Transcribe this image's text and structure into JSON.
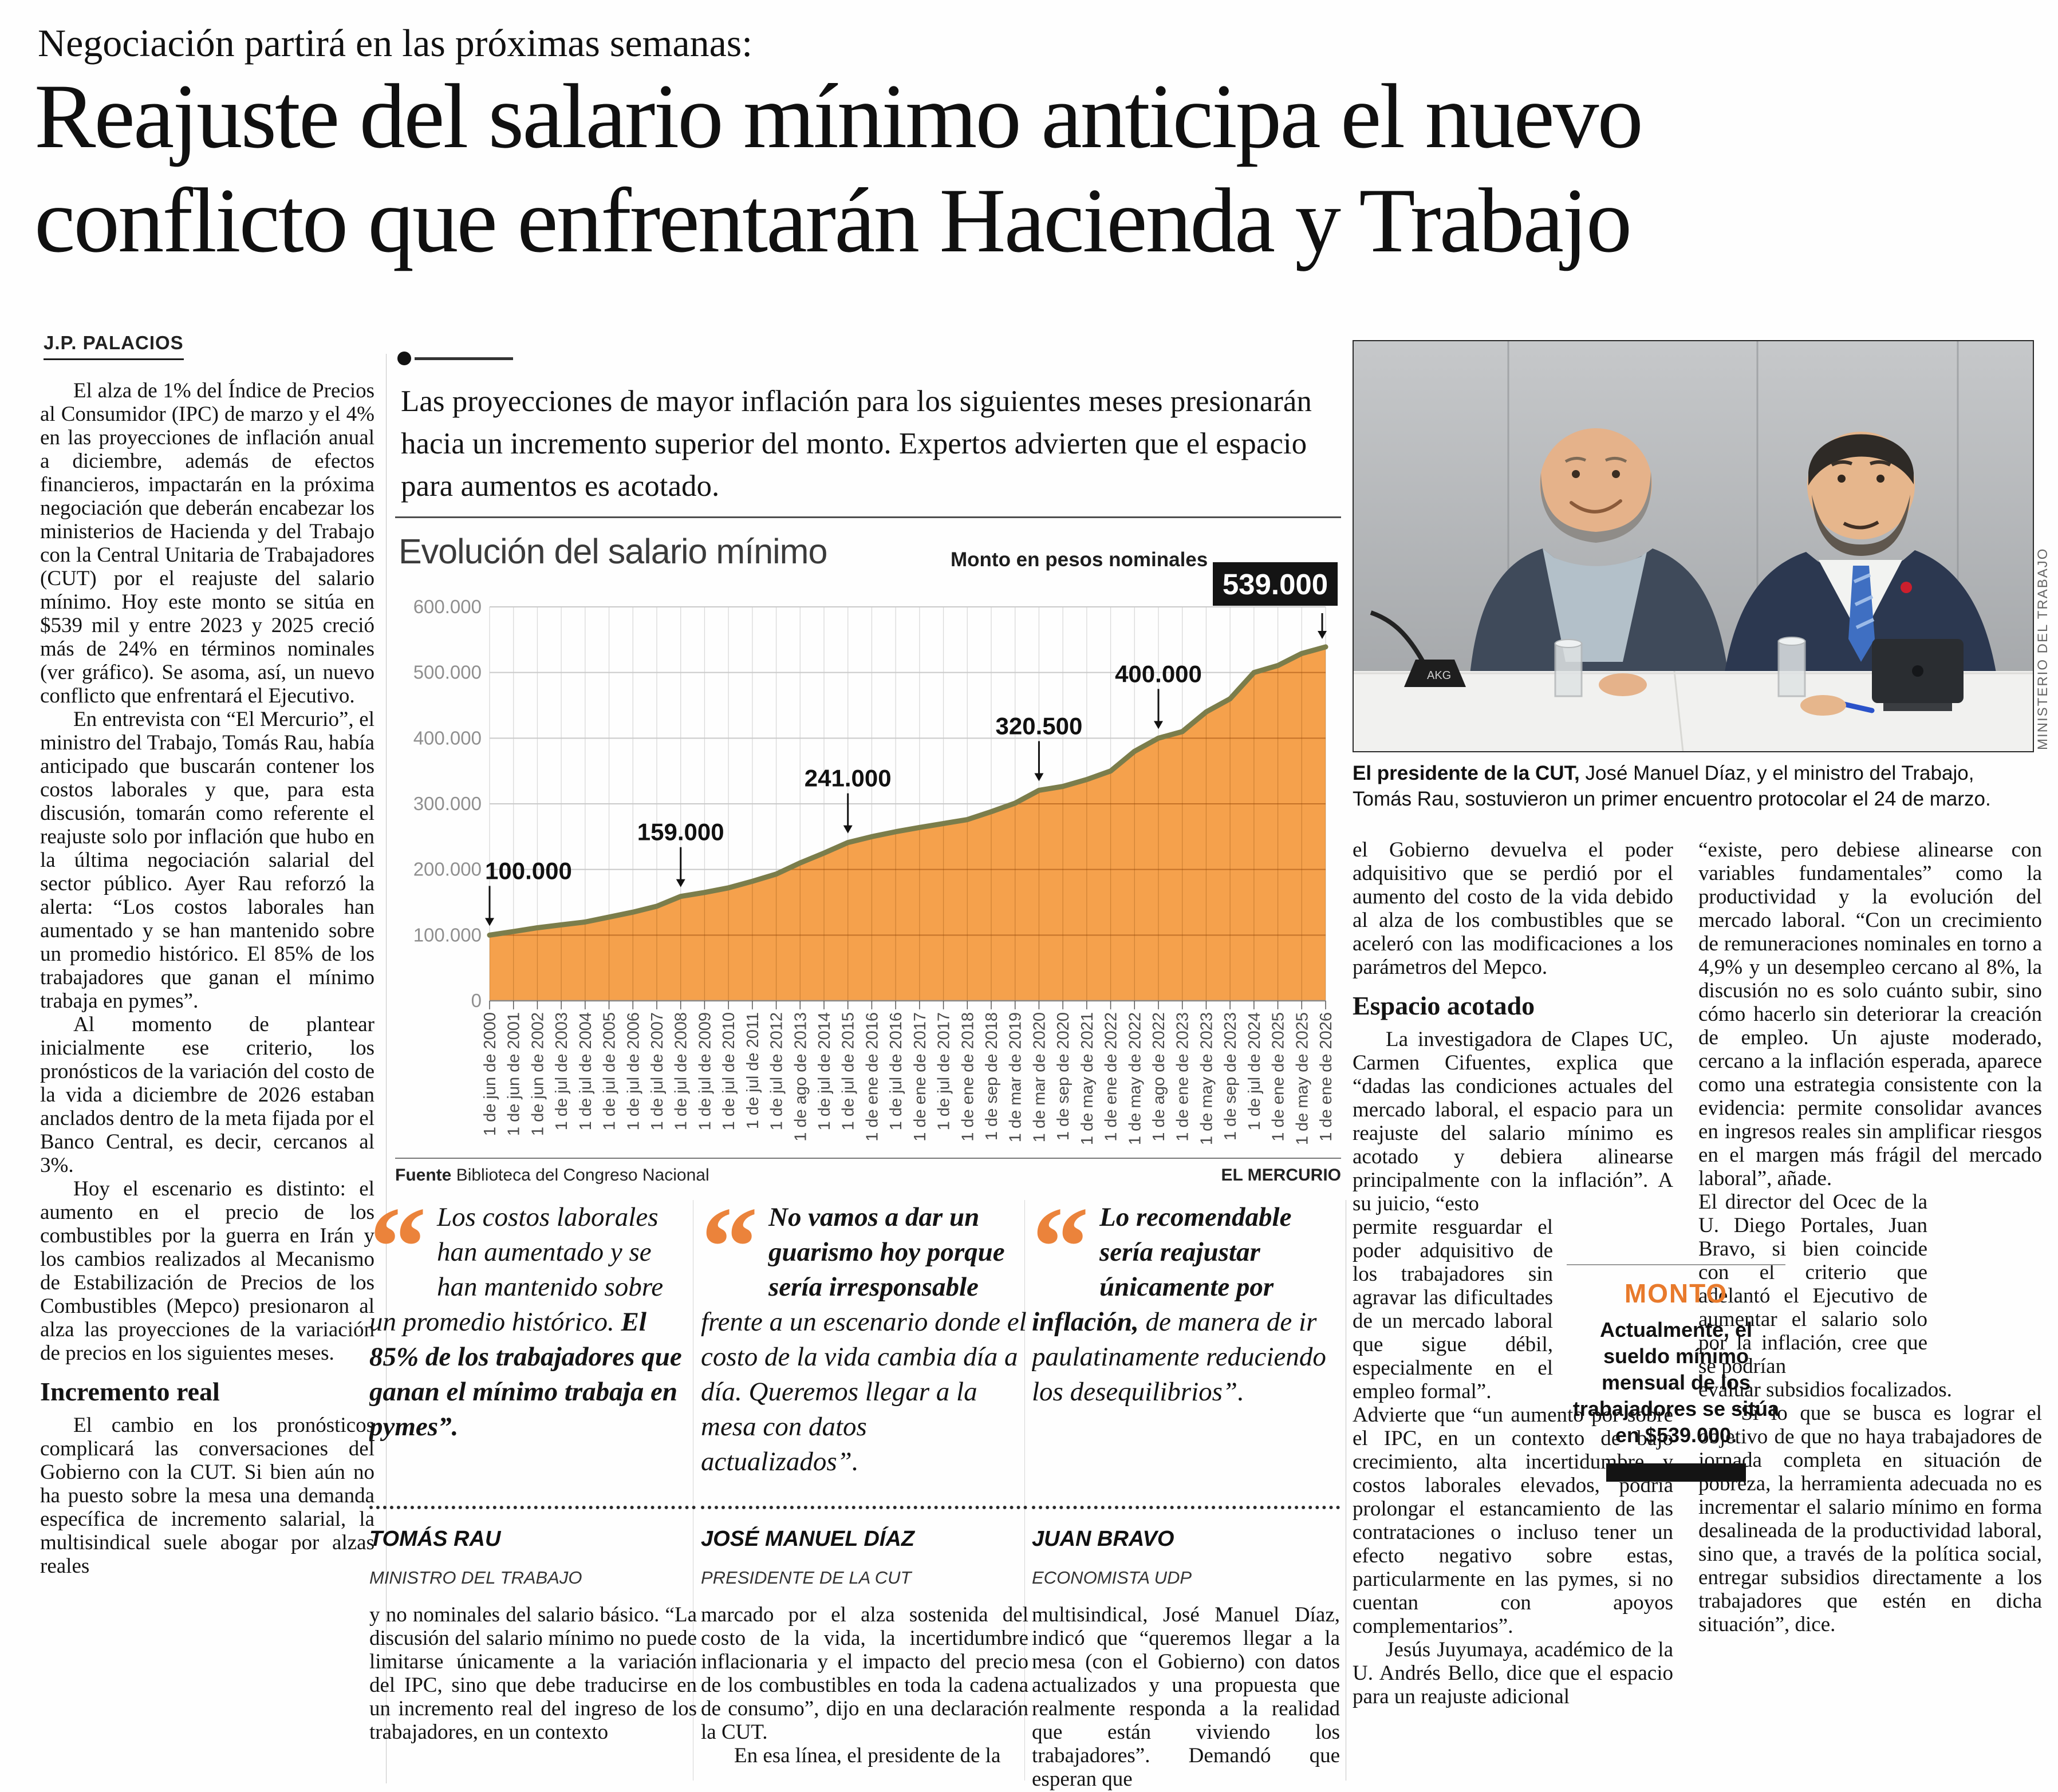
{
  "masthead": {
    "kicker": "Negociación partirá en las próximas semanas:",
    "headline_line1": "Reajuste del salario mínimo anticipa el nuevo",
    "headline_line2": "conflicto que enfrentarán Hacienda y Trabajo",
    "byline": "J.P. PALACIOS"
  },
  "standfirst": "Las proyecciones de mayor inflación para los siguientes meses presionarán hacia un incremento superior del monto. Expertos advierten que el espacio para aumentos es acotado.",
  "left_column": {
    "p1": "El alza de 1% del Índice de Precios al Consumidor (IPC) de marzo y el 4% en las proyecciones de inflación anual a diciembre, además de efectos financieros, impactarán en la próxima negociación que deberán encabezar los ministerios de Hacienda y del Trabajo con la Central Unitaria de Trabajadores (CUT) por el reajuste del salario mínimo. Hoy este monto se sitúa en $539 mil y entre 2023 y 2025 creció más de 24% en términos nominales (ver gráfico). Se asoma, así, un nuevo conflicto que enfrentará el Ejecutivo.",
    "p2": "En entrevista con “El Mercurio”, el ministro del Trabajo, Tomás Rau, había anticipado que buscarán contener los costos laborales y que, para esta discusión, tomarán como referente el reajuste solo por inflación que hubo en la última negociación salarial del sector público. Ayer Rau reforzó la alerta: “Los costos laborales han aumentado y se han mantenido sobre un promedio histórico. El 85% de los trabajadores que ganan el mínimo trabaja en pymes”.",
    "p3": "Al momento de plantear inicialmente ese criterio, los pronósticos de la variación del costo de la vida a diciembre de 2026 estaban anclados dentro de la meta fijada por el Banco Central, es decir, cercanos al 3%.",
    "p4": "Hoy el escenario es distinto: el aumento en el precio de los combustibles por la guerra en Irán y los cambios realizados al Mecanismo de Estabilización de Precios de los Combustibles (Mepco) presionaron al alza las proyecciones de la variación de precios en los siguientes meses.",
    "subhead": "Incremento real",
    "p5": "El cambio en los pronósticos complicará las conversaciones del Gobierno con la CUT. Si bien aún no ha puesto sobre la mesa una demanda específica de incremento salarial, la multisindical suele abogar por alzas reales"
  },
  "chart": {
    "title": "Evolución del salario mínimo",
    "subtitle": "Monto en pesos nominales",
    "final_label": "539.000",
    "source_label": "Fuente",
    "source": "Biblioteca del Congreso Nacional",
    "credit": "EL MERCURIO"
  },
  "chart_data": {
    "type": "area",
    "title": "Evolución del salario mínimo",
    "subtitle": "Monto en pesos nominales",
    "ylabel": "Monto en pesos nominales",
    "ylim": [
      0,
      600000
    ],
    "grid": true,
    "x": [
      "1 de jun de 2000",
      "1 de jun de 2001",
      "1 de jun de 2002",
      "1 de jul de 2003",
      "1 de jul de 2004",
      "1 de jul de 2005",
      "1 de jul de 2006",
      "1 de jul de 2007",
      "1 de jul de 2008",
      "1 de jul de 2009",
      "1 de jul de 2010",
      "1 de jul de 2011",
      "1 de jul de 2012",
      "1 de ago de 2013",
      "1 de jul de 2014",
      "1 de jul de 2015",
      "1 de ene de 2016",
      "1 de jul de 2016",
      "1 de ene de 2017",
      "1 de jul de 2017",
      "1 de ene de 2018",
      "1 de sep de 2018",
      "1 de mar de 2019",
      "1 de mar de 2020",
      "1 de sep de 2020",
      "1 de may de 2021",
      "1 de ene de 2022",
      "1 de may de 2022",
      "1 de ago de 2022",
      "1 de ene de 2023",
      "1 de may de 2023",
      "1 de sep de 2023",
      "1 de jul de 2024",
      "1 de ene de 2025",
      "1 de may de 2025",
      "1 de ene de 2026"
    ],
    "values": [
      100000,
      105500,
      111200,
      115648,
      120000,
      127500,
      135000,
      144000,
      159000,
      165000,
      172000,
      182000,
      193000,
      210000,
      225000,
      241000,
      250000,
      257500,
      264000,
      270000,
      276000,
      288000,
      301000,
      320500,
      326500,
      337000,
      350000,
      380000,
      400000,
      410000,
      440000,
      460000,
      500000,
      510636,
      529000,
      539000
    ],
    "y_ticks": [
      {
        "v": 0,
        "label": "0"
      },
      {
        "v": 100000,
        "label": "100.000"
      },
      {
        "v": 200000,
        "label": "200.000"
      },
      {
        "v": 300000,
        "label": "300.000"
      },
      {
        "v": 400000,
        "label": "400.000"
      },
      {
        "v": 500000,
        "label": "500.000"
      },
      {
        "v": 600000,
        "label": "600.000"
      }
    ],
    "annotations": [
      {
        "index": 0,
        "label": "100.000"
      },
      {
        "index": 8,
        "label": "159.000"
      },
      {
        "index": 15,
        "label": "241.000"
      },
      {
        "index": 23,
        "label": "320.500"
      },
      {
        "index": 28,
        "label": "400.000"
      }
    ],
    "final_annotation": {
      "index": 35,
      "label": "539.000"
    },
    "colors": {
      "area": "#F49C42",
      "line": "#7B7D4B",
      "grid": "#c9c9c9"
    }
  },
  "photo": {
    "caption_lead": "El presidente de la CUT,",
    "caption_rest": " José Manuel Díaz, y el ministro del Trabajo, Tomás Rau, sostuvieron un primer encuentro protocolar el 24 de marzo.",
    "credit": "MINISTERIO DEL TRABAJO",
    "mic_label": "AKG"
  },
  "quotes": [
    {
      "pre": "Los costos laborales han aumentado y se han mantenido sobre un promedio histórico. ",
      "bold": "El 85% de los trabajadores que ganan el mínimo trabaja en pymes”.",
      "post": "",
      "name": "TOMÁS RAU",
      "role": "MINISTRO DEL TRABAJO"
    },
    {
      "pre": "",
      "bold": "No vamos a dar un guarismo hoy porque sería irresponsable ",
      "post": "frente a un escenario donde el costo de la vida cambia día a día. Queremos llegar a la mesa con datos actualizados”.",
      "name": "JOSÉ MANUEL DÍAZ",
      "role": "PRESIDENTE DE LA CUT"
    },
    {
      "pre": "",
      "bold": "Lo recomendable sería reajustar únicamente por inflación, ",
      "post": "de manera de ir paulatinamente reduciendo los desequilibrios”.",
      "name": "JUAN BRAVO",
      "role": "ECONOMISTA UDP"
    }
  ],
  "bottom_columns": {
    "a": "y no nominales del salario básico. “La discusión del salario mínimo no puede limitarse únicamente a la variación del IPC, sino que debe traducirse en un incremento real del ingreso de los trabajadores, en un contexto",
    "b1": "marcado por el alza sostenida del costo de la vida, la incertidumbre inflacionaria y el impacto del precio de los combustibles en toda la cadena de consumo”, dijo en una declaración la CUT.",
    "b2": "En esa línea, el presidente de la",
    "c": "multisindical, José Manuel Díaz, indicó que “queremos llegar a la mesa (con el Gobierno) con datos actualizados y una propuesta que realmente responda a la realidad que están viviendo los trabajadores”. Demandó que esperan que"
  },
  "col_d": {
    "p1": "el Gobierno devuelva el poder adquisitivo que se perdió por el aumento del costo de la vida debido al alza de los combustibles que se aceleró con las modificaciones a los parámetros del Mepco.",
    "subhead": "Espacio acotado",
    "p2a": "La investigadora de Clapes UC, Carmen Cifuentes, explica que “dadas las condiciones actuales del mercado laboral, el espacio para un reajuste del salario mínimo es acotado y debiera alinearse principalmente con la inflación”. A su juicio, “esto",
    "p2b": "permite resguardar el poder adquisitivo de los trabajadores sin agravar las dificultades de un mercado laboral que sigue débil, especialmente en el empleo formal”.",
    "p2c": "Advierte que “un aumento por sobre el IPC, en un contexto de bajo crecimiento, alta incertidumbre y costos laborales elevados, podría prolongar el estancamiento de las contrataciones o incluso tener un efecto negativo sobre estas, particularmente en las pymes, si no cuentan con apoyos complementarios”.",
    "p3": "Jesús Juyumaya, académico de la U. Andrés Bello, dice que el espacio para un reajuste adicional"
  },
  "col_e": {
    "p1": "“existe, pero debiese alinearse con variables fundamentales” como la productividad y la evolución del mercado laboral. “Con un crecimiento de remuneraciones nominales en torno a 4,9% y un desempleo cercano al 8%, la discusión no es solo cuánto subir, sino cómo hacerlo sin deteriorar la creación de empleo. Un ajuste moderado, cercano a la inflación esperada, aparece como una estrategia consistente con la evidencia: permite consolidar avances en ingresos reales sin amplificar riesgos en el margen más frágil del mercado laboral”, añade.",
    "p2": "El director del Ocec de la U. Diego Portales, Juan Bravo, si bien coincide con el criterio que adelantó el Ejecutivo de aumentar el salario solo por la inflación, cree que se podrían",
    "p3": "evaluar subsidios focalizados.",
    "p4": "“Si lo que se busca es lograr el objetivo de que no haya trabajadores de jornada completa en situación de pobreza, la herramienta adecuada no es incrementar el salario mínimo en forma desalineada de la productividad laboral, sino que, a través de la política social, entregar subsidios directamente a los trabajadores que estén en dicha situación”, dice."
  },
  "monto": {
    "title": "MONTO",
    "text": "Actualmente, el sueldo mínimo mensual de los trabajadores se sitúa en $539.000."
  }
}
